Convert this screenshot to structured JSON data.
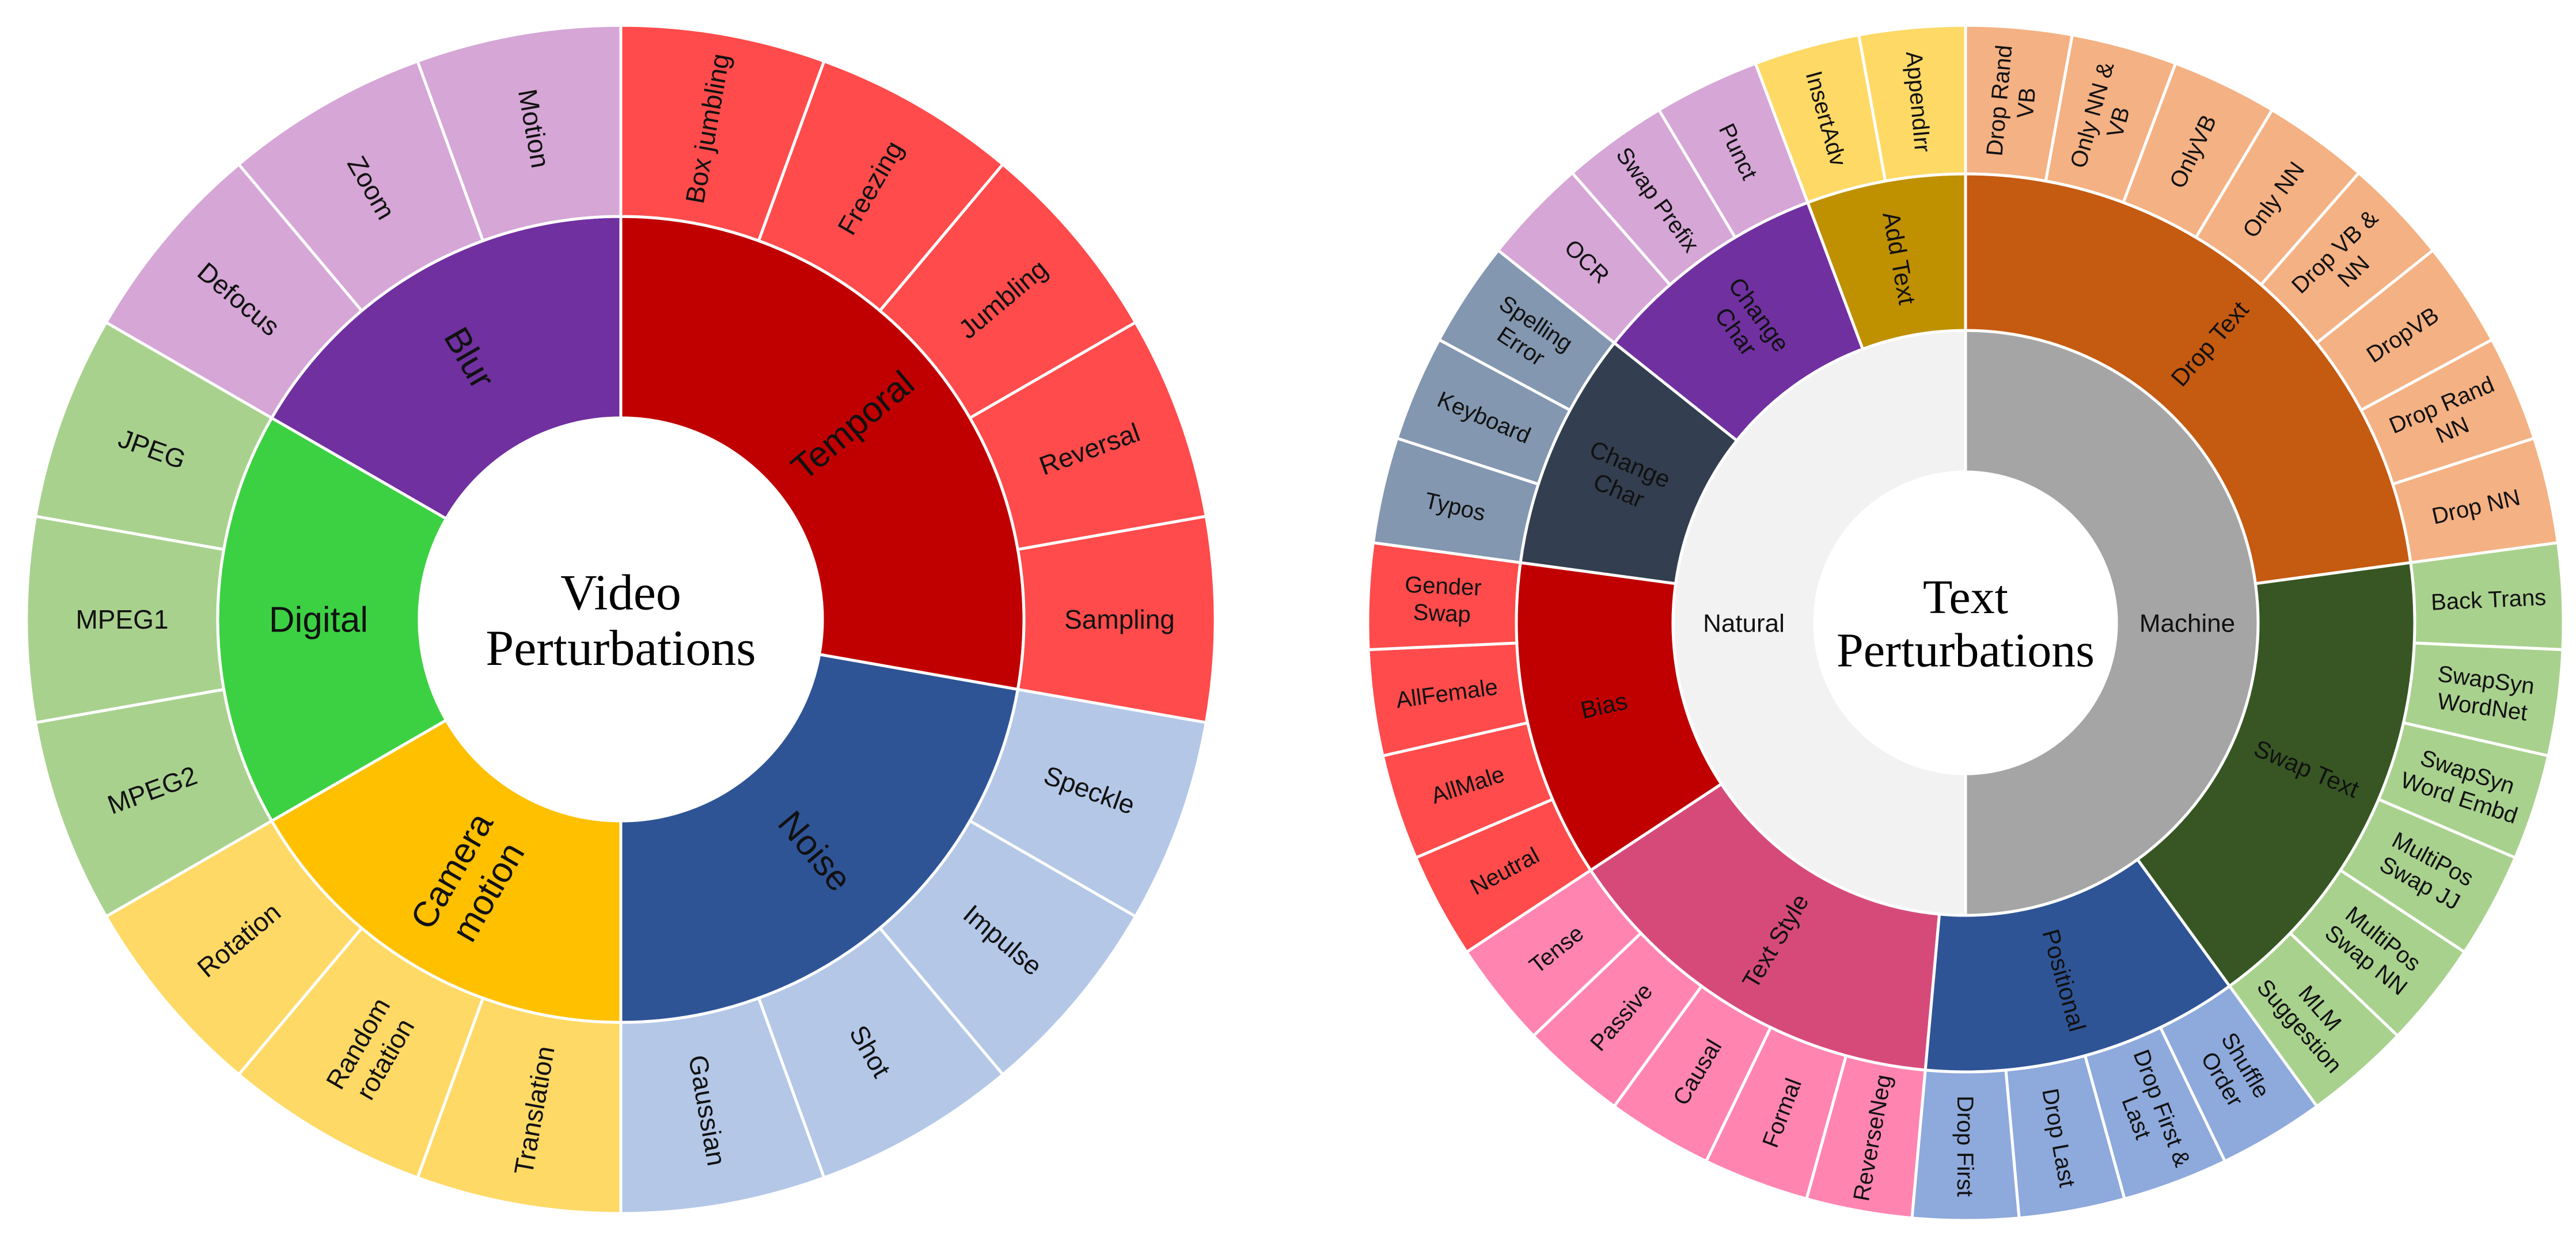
{
  "charts": [
    {
      "id": "video",
      "title_lines": [
        "Video",
        "Perturbations"
      ],
      "start_deg": 0,
      "groups": [
        {
          "name_lines": [
            "Temporal"
          ],
          "color": "#C00000",
          "leaf_color": "#FF4B4B",
          "leaves": [
            [
              "Box jumbling"
            ],
            [
              "Freezing"
            ],
            [
              "Jumbling"
            ],
            [
              "Reversal"
            ],
            [
              "Sampling"
            ]
          ]
        },
        {
          "name_lines": [
            "Noise"
          ],
          "color": "#2F5496",
          "leaf_color": "#B4C7E7",
          "leaves": [
            [
              "Speckle"
            ],
            [
              "Impulse"
            ],
            [
              "Shot"
            ],
            [
              "Gaussian"
            ]
          ]
        },
        {
          "name_lines": [
            "Camera",
            "motion"
          ],
          "color": "#FFC000",
          "leaf_color": "#FFD966",
          "leaves": [
            [
              "Translation"
            ],
            [
              "Random",
              "rotation"
            ],
            [
              "Rotation"
            ]
          ]
        },
        {
          "name_lines": [
            "Digital"
          ],
          "color": "#3CD143",
          "leaf_color": "#A9D18E",
          "leaves": [
            [
              "MPEG2"
            ],
            [
              "MPEG1"
            ],
            [
              "JPEG"
            ]
          ]
        },
        {
          "name_lines": [
            "Blur"
          ],
          "color": "#7030A0",
          "leaf_color": "#D5A6D6",
          "leaves": [
            [
              "Defocus"
            ],
            [
              "Zoom"
            ],
            [
              "Motion"
            ]
          ]
        }
      ]
    },
    {
      "id": "text",
      "title_lines": [
        "Text",
        "Perturbations"
      ],
      "start_deg": 0,
      "rings": [
        {
          "name_lines": [
            "Machine"
          ],
          "color": "#A5A5A5",
          "span": 18
        },
        {
          "name_lines": [
            "Natural"
          ],
          "color": "#F2F2F2",
          "span": 18
        }
      ],
      "groups": [
        {
          "name_lines": [
            "Drop Text"
          ],
          "color": "#C55A11",
          "leaf_color": "#F4B183",
          "leaves": [
            [
              "Drop Rand",
              "VB"
            ],
            [
              "Only NN &",
              "VB"
            ],
            [
              "OnlyVB"
            ],
            [
              "Only NN"
            ],
            [
              "Drop VB &",
              "NN"
            ],
            [
              "DropVB"
            ],
            [
              "Drop Rand",
              "NN"
            ],
            [
              "Drop NN"
            ]
          ]
        },
        {
          "name_lines": [
            "Swap Text"
          ],
          "color": "#375623",
          "leaf_color": "#A9D18E",
          "leaves": [
            [
              "Back Trans"
            ],
            [
              "SwapSyn",
              "WordNet"
            ],
            [
              "SwapSyn",
              "Word Embd"
            ],
            [
              "MultiPos",
              "Swap JJ"
            ],
            [
              "MultiPos",
              "Swap NN"
            ],
            [
              "MLM",
              "Suggestion"
            ]
          ]
        },
        {
          "name_lines": [
            "Positional"
          ],
          "color": "#2F5496",
          "leaf_color": "#8EA9DB",
          "leaves": [
            [
              "Shuffle",
              "Order"
            ],
            [
              "Drop First &",
              "Last"
            ],
            [
              "Drop Last"
            ],
            [
              "Drop First"
            ]
          ]
        },
        {
          "name_lines": [
            "Text Style"
          ],
          "color": "#D64A7A",
          "leaf_color": "#FF85B0",
          "leaves": [
            [
              "ReverseNeg"
            ],
            [
              "Formal"
            ],
            [
              "Causal"
            ],
            [
              "Passive"
            ],
            [
              "Tense"
            ]
          ]
        },
        {
          "name_lines": [
            "Bias"
          ],
          "color": "#C00000",
          "leaf_color": "#FF4B4B",
          "leaves": [
            [
              "Neutral"
            ],
            [
              "AllMale"
            ],
            [
              "AllFemale"
            ],
            [
              "Gender",
              "Swap"
            ]
          ]
        },
        {
          "name_lines": [
            "Change",
            "Char"
          ],
          "color": "#333F50",
          "leaf_color": "#8497B0",
          "leaves": [
            [
              "Typos"
            ],
            [
              "Keyboard"
            ],
            [
              "Spelling",
              "Error"
            ]
          ]
        },
        {
          "name_lines": [
            "Change",
            "Char"
          ],
          "color": "#7030A0",
          "leaf_color": "#D5A6D6",
          "leaves": [
            [
              "OCR"
            ],
            [
              "Swap Prefix"
            ],
            [
              "Punct"
            ]
          ]
        },
        {
          "name_lines": [
            "Add Text"
          ],
          "color": "#BF9000",
          "leaf_color": "#FFD966",
          "leaves": [
            [
              "InsertAdv"
            ],
            [
              "AppendIrr"
            ]
          ]
        }
      ]
    }
  ]
}
